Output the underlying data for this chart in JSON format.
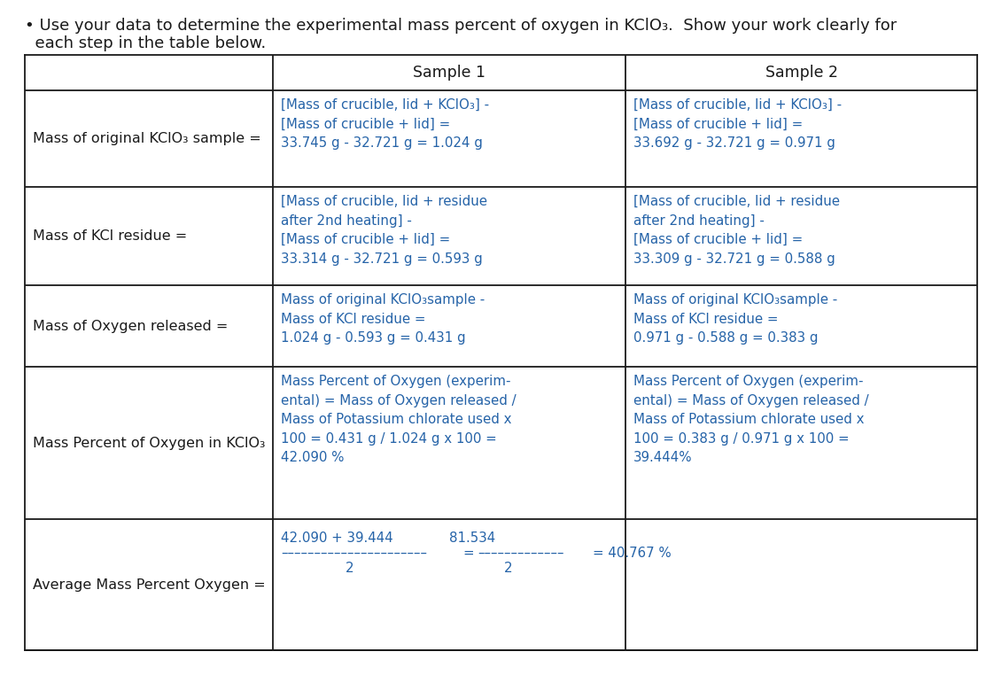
{
  "blue": "#2563A8",
  "black": "#1a1a1a",
  "bg": "#FFFFFF",
  "title_line1": "• Use your data to determine the experimental mass percent of oxygen in KClO₃.  Show your work clearly for",
  "title_line2": "  each step in the table below.",
  "header1": "Sample 1",
  "header2": "Sample 2",
  "row_labels": [
    "Mass of original KClO₃ sample =",
    "Mass of KCl residue =",
    "Mass of Oxygen released =",
    "Mass Percent of Oxygen in KClO₃",
    "Average Mass Percent Oxygen ="
  ],
  "s1_r1": "[Mass of crucible, lid + KClO₃] -\n[Mass of crucible + lid] =\n33.745 g - 32.721 g = 1.024 g",
  "s2_r1": "[Mass of crucible, lid + KClO₃] -\n[Mass of crucible + lid] =\n33.692 g - 32.721 g = 0.971 g",
  "s1_r2": "[Mass of crucible, lid + residue\nafter 2nd heating] -\n[Mass of crucible + lid] =\n33.314 g - 32.721 g = 0.593 g",
  "s2_r2": "[Mass of crucible, lid + residue\nafter 2nd heating] -\n[Mass of crucible + lid] =\n33.309 g - 32.721 g = 0.588 g",
  "s1_r3": "Mass of original KClO₃sample -\nMass of KCl residue =\n1.024 g - 0.593 g = 0.431 g",
  "s2_r3": "Mass of original KClO₃sample -\nMass of KCl residue =\n0.971 g - 0.588 g = 0.383 g",
  "s1_r4": "Mass Percent of Oxygen (experim-\nental) = Mass of Oxygen released /\nMass of Potassium chlorate used x\n100 = 0.431 g / 1.024 g x 100 =\n42.090 %",
  "s2_r4": "Mass Percent of Oxygen (experim-\nental) = Mass of Oxygen released /\nMass of Potassium chlorate used x\n100 = 0.383 g / 0.971 g x 100 =\n39.444%",
  "avg_num1": "42.090 + 39.444",
  "avg_num2": "81.534",
  "avg_eq_result": "= 40.767 %",
  "avg_denom1": "2",
  "avg_denom2": "2",
  "fs_title": 13,
  "fs_header": 12.5,
  "fs_label": 11.5,
  "fs_cell": 10.8
}
